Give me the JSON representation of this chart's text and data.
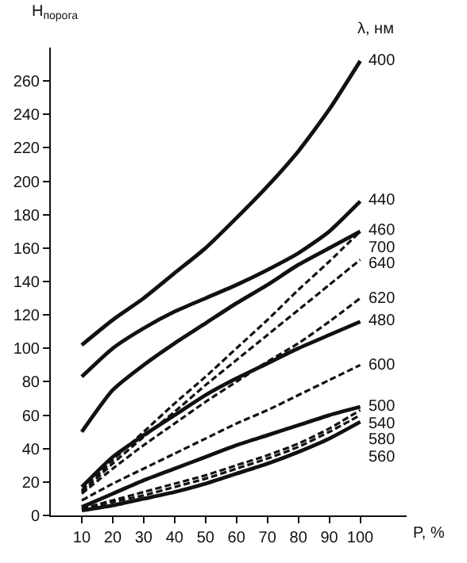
{
  "chart_data": {
    "type": "line",
    "ylabel": "H$_{порога}$",
    "xlabel": "P, %",
    "legend_title": "λ, нм",
    "x": [
      10,
      20,
      30,
      40,
      50,
      60,
      70,
      80,
      90,
      100
    ],
    "xlim": [
      0,
      115
    ],
    "xticks": [
      10,
      20,
      30,
      40,
      50,
      60,
      70,
      80,
      90,
      100
    ],
    "ylim": [
      0,
      280
    ],
    "yticks": [
      0,
      20,
      40,
      60,
      80,
      100,
      120,
      140,
      160,
      180,
      200,
      220,
      240,
      260
    ],
    "grid": false,
    "legend": false,
    "marker": "none",
    "series": [
      {
        "name": "400",
        "color": "#111111",
        "line_style": "solid",
        "values": [
          102,
          117,
          130,
          145,
          160,
          178,
          197,
          218,
          243,
          272
        ]
      },
      {
        "name": "440",
        "color": "#111111",
        "line_style": "solid",
        "values": [
          83,
          100,
          112,
          122,
          130,
          138,
          147,
          157,
          170,
          188
        ]
      },
      {
        "name": "460",
        "color": "#111111",
        "line_style": "solid",
        "values": [
          50,
          75,
          90,
          103,
          115,
          127,
          138,
          150,
          160,
          170
        ]
      },
      {
        "name": "700",
        "color": "#111111",
        "line_style": "dashed",
        "values": [
          15,
          33,
          50,
          67,
          83,
          100,
          117,
          135,
          152,
          170
        ]
      },
      {
        "name": "640",
        "color": "#111111",
        "line_style": "dashed",
        "values": [
          14,
          31,
          47,
          62,
          78,
          93,
          108,
          123,
          138,
          153
        ]
      },
      {
        "name": "620",
        "color": "#111111",
        "line_style": "dashed",
        "values": [
          13,
          28,
          42,
          55,
          68,
          80,
          92,
          103,
          116,
          130
        ]
      },
      {
        "name": "480",
        "color": "#111111",
        "line_style": "solid",
        "values": [
          17,
          35,
          48,
          60,
          72,
          82,
          91,
          100,
          108,
          116
        ]
      },
      {
        "name": "600",
        "color": "#111111",
        "line_style": "dashed",
        "values": [
          9,
          19,
          28,
          37,
          46,
          55,
          63,
          72,
          81,
          90
        ]
      },
      {
        "name": "500",
        "color": "#111111",
        "line_style": "solid",
        "values": [
          5,
          13,
          21,
          28,
          35,
          42,
          48,
          54,
          60,
          65
        ]
      },
      {
        "name": "540",
        "color": "#111111",
        "line_style": "dashed",
        "values": [
          4,
          9,
          14,
          19,
          24,
          30,
          36,
          43,
          52,
          63
        ]
      },
      {
        "name": "580",
        "color": "#111111",
        "line_style": "dashed",
        "values": [
          4,
          8,
          12,
          17,
          22,
          28,
          34,
          41,
          50,
          60
        ]
      },
      {
        "name": "560",
        "color": "#111111",
        "line_style": "solid",
        "values": [
          3,
          6,
          10,
          14,
          19,
          25,
          31,
          38,
          46,
          56
        ]
      }
    ]
  }
}
